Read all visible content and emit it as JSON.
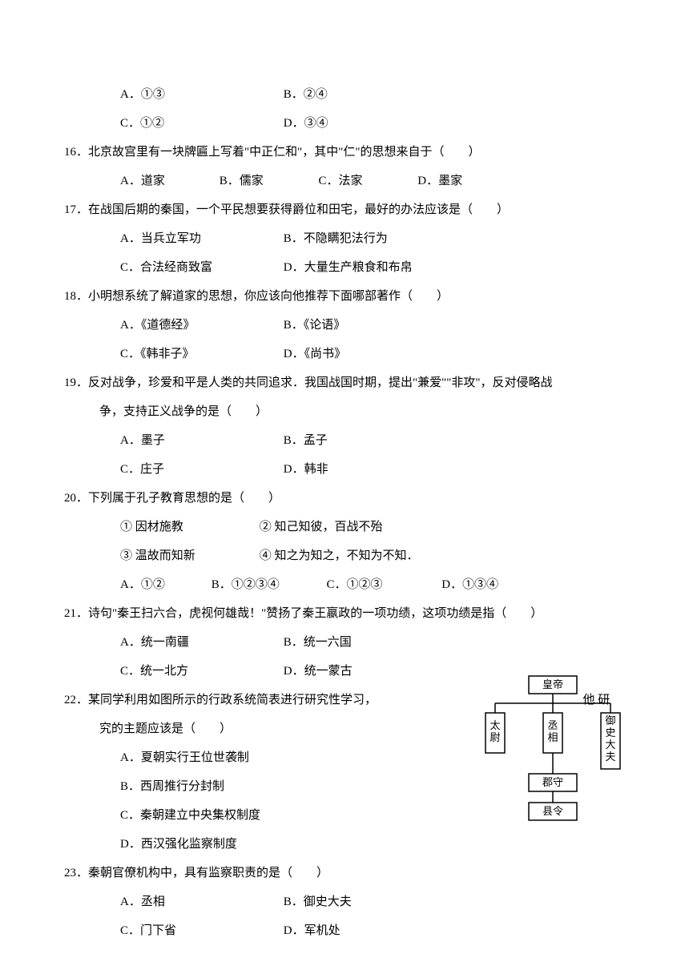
{
  "q15opts": {
    "a": "A．①③",
    "b": "B．②④",
    "c": "C．①②",
    "d": "D．③④"
  },
  "q16": {
    "text": "16．北京故宫里有一块牌匾上写着\"中正仁和\"，其中\"仁\"的思想来自于（　　）",
    "a": "A．道家",
    "b": "B．儒家",
    "c": "C．法家",
    "d": "D．墨家"
  },
  "q17": {
    "text": "17．在战国后期的秦国，一个平民想要获得爵位和田宅，最好的办法应该是（　　）",
    "a": "A．当兵立军功",
    "b": "B．不隐瞒犯法行为",
    "c": "C．合法经商致富",
    "d": "D．大量生产粮食和布帛"
  },
  "q18": {
    "text": "18．小明想系统了解道家的思想，你应该向他推荐下面哪部著作（　　）",
    "a": "A．《道德经》",
    "b": "B．《论语》",
    "c": "C．《韩非子》",
    "d": "D．《尚书》"
  },
  "q19": {
    "text": "19．反对战争，珍爱和平是人类的共同追求．我国战国时期，提出\"兼爱\"\"非攻\"，反对侵略战",
    "text2": "争，支持正义战争的是（　　）",
    "a": "A．墨子",
    "b": "B．孟子",
    "c": "C．庄子",
    "d": "D．韩非"
  },
  "q20": {
    "text": "20．下列属于孔子教育思想的是（　　）",
    "l1a": "① 因材施教",
    "l1b": "② 知己知彼，百战不殆",
    "l2a": "③ 温故而知新",
    "l2b": "④ 知之为知之，不知为不知．",
    "a": "A．①②",
    "b": "B．①②③④",
    "c": "C．①②③",
    "d": "D．①③④"
  },
  "q21": {
    "text": "21．诗句\"秦王扫六合，虎视何雄哉！\"赞扬了秦王嬴政的一项功绩，这项功绩是指（　　）",
    "a": "A．统一南疆",
    "b": "B．统一六国",
    "c": "C．统一北方",
    "d": "D．统一蒙古"
  },
  "q22": {
    "text_l1": "22．某同学利用如图所示的行政系统简表进行研究性学习，",
    "text_l1b": "他 研",
    "text_l2": "究的主题应该是（　　）",
    "a": "A．夏朝实行王位世袭制",
    "b": "B．西周推行分封制",
    "c": "C．秦朝建立中央集权制度",
    "d": "D．西汉强化监察制度"
  },
  "q23": {
    "text": "23．秦朝官僚机构中，具有监察职责的是（　　）",
    "a": "A．丞相",
    "b": "B．御史大夫",
    "c": "C．门下省",
    "d": "D．军机处"
  },
  "diagram": {
    "top": "皇帝",
    "left": "太尉",
    "mid": "丞相",
    "right": "御史大夫",
    "b1": "郡守",
    "b2": "县令"
  }
}
